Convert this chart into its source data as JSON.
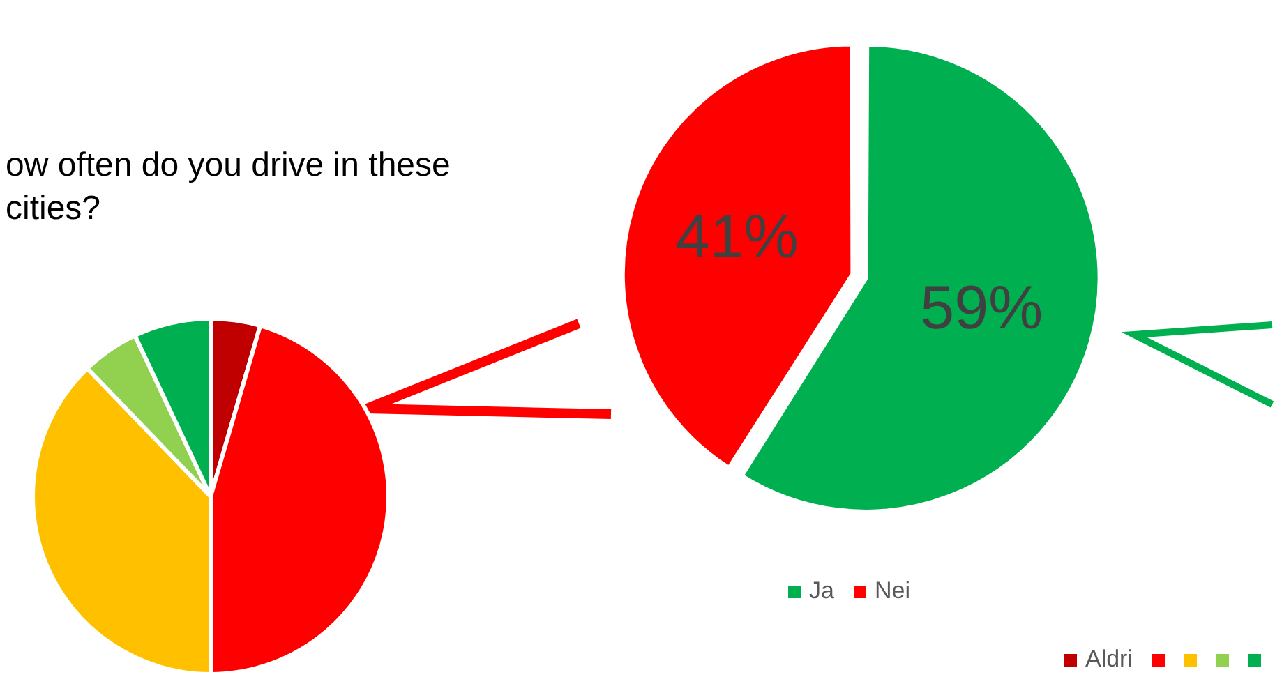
{
  "chart_data": [
    {
      "type": "pie",
      "title": "ow often do you drive in these cities?",
      "categories": [
        "Aldri",
        null,
        null,
        null,
        null
      ],
      "values": [
        4.5,
        45.5,
        37.8,
        5.2,
        7
      ],
      "colors": [
        "#c00000",
        "#ff0000",
        "#ffc000",
        "#92d050",
        "#00b050"
      ],
      "legend": "bottom right"
    },
    {
      "type": "pie",
      "categories": [
        "Ja",
        "Nei"
      ],
      "values": [
        59,
        41
      ],
      "colors": [
        "#00b050",
        "#ff0000"
      ],
      "value_labels": [
        "59%",
        "41%"
      ],
      "legend": "bottom"
    }
  ]
}
